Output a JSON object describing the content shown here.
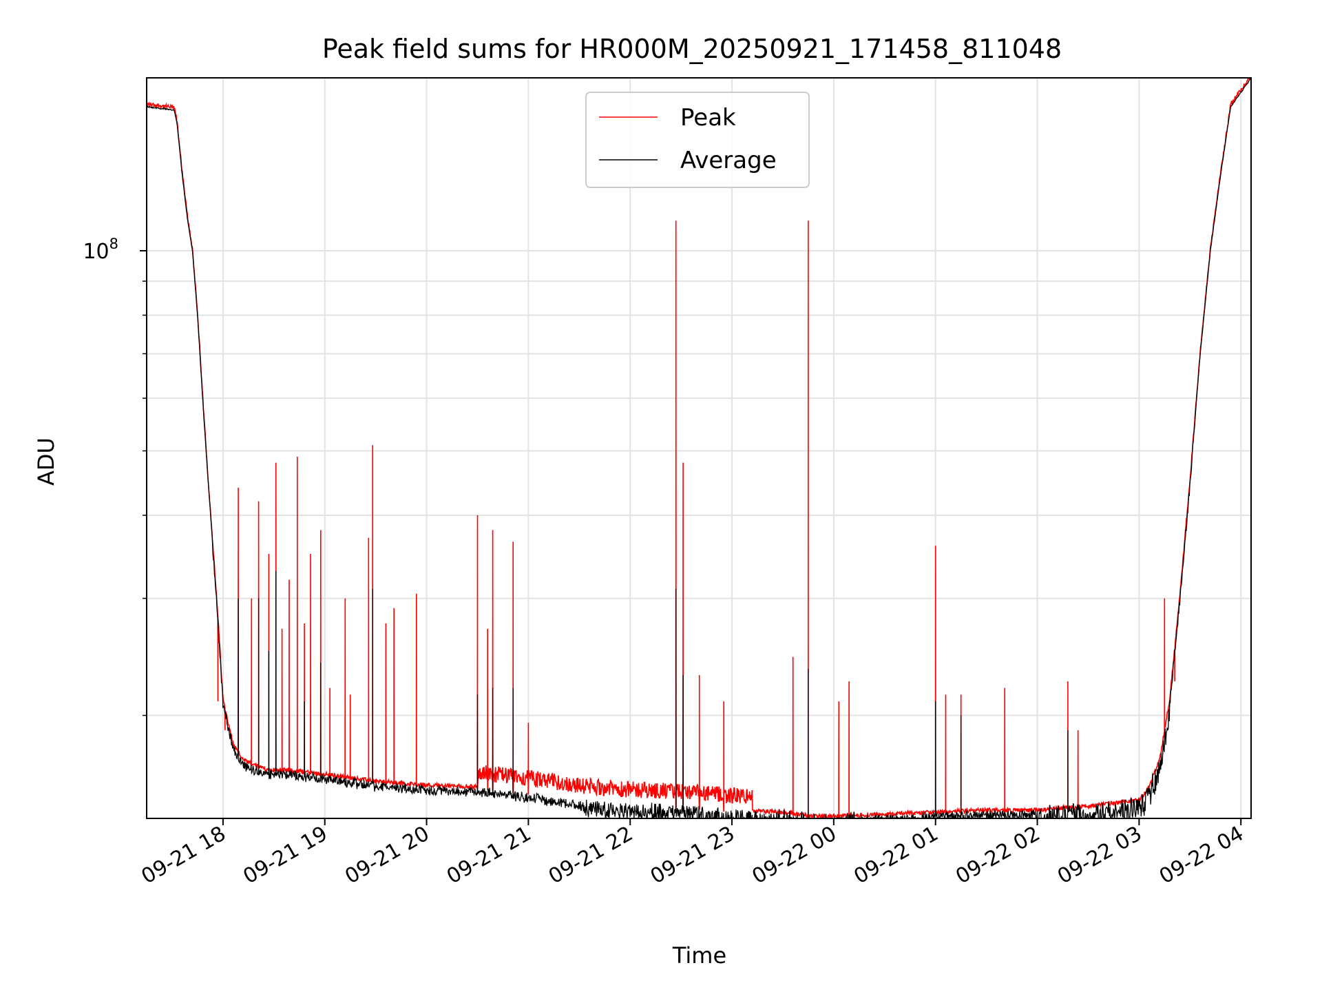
{
  "chart_data": {
    "type": "line",
    "title": "Peak field sums for HR000M_20250921_171458_811048",
    "xlabel": "Time",
    "ylabel": "ADU",
    "yscale": "log",
    "ylim": [
      14000000,
      182000000
    ],
    "xlim_hours": [
      17.25,
      28.1
    ],
    "x_tick_labels": [
      "09-21 18",
      "09-21 19",
      "09-21 20",
      "09-21 21",
      "09-21 22",
      "09-21 23",
      "09-22 00",
      "09-22 01",
      "09-22 02",
      "09-22 03",
      "09-22 04"
    ],
    "x_tick_hours": [
      18,
      19,
      20,
      21,
      22,
      23,
      24,
      25,
      26,
      27,
      28
    ],
    "y_major_tick_label": "10",
    "y_major_tick_exp": "8",
    "y_major_tick_value": 100000000,
    "y_minor_ticks": [
      20000000,
      30000000,
      40000000,
      50000000,
      60000000,
      70000000,
      80000000,
      90000000
    ],
    "grid": true,
    "legend_position": "upper-center",
    "series": [
      {
        "name": "Peak",
        "color": "#ff0000"
      },
      {
        "name": "Average",
        "color": "#000000"
      }
    ],
    "baseline": {
      "hours": [
        17.25,
        17.52,
        17.55,
        17.6,
        17.65,
        17.7,
        17.75,
        17.8,
        17.85,
        17.9,
        17.95,
        18.0,
        18.1,
        18.2,
        18.4,
        18.7,
        19.0,
        19.5,
        20.0,
        20.5,
        21.0,
        21.5,
        22.0,
        22.5,
        23.0,
        23.5,
        23.8,
        24.0,
        24.5,
        25.0,
        25.5,
        26.0,
        26.5,
        27.0,
        27.1,
        27.2,
        27.3,
        27.4,
        27.5,
        27.6,
        27.7,
        27.8,
        27.9,
        28.1
      ],
      "values": [
        165000000,
        163000000,
        155000000,
        130000000,
        112000000,
        100000000,
        80000000,
        60000000,
        46000000,
        36000000,
        28000000,
        21000000,
        18000000,
        17000000,
        16500000,
        16400000,
        16200000,
        15800000,
        15600000,
        15500000,
        15200000,
        14800000,
        14600000,
        14500000,
        14300000,
        14200000,
        14000000,
        14000000,
        14100000,
        14200000,
        14300000,
        14300000,
        14500000,
        14800000,
        15500000,
        17000000,
        21000000,
        30000000,
        45000000,
        70000000,
        100000000,
        130000000,
        165000000,
        182000000
      ]
    },
    "peak_spikes": {
      "hours": [
        17.95,
        18.02,
        18.15,
        18.28,
        18.35,
        18.45,
        18.52,
        18.58,
        18.65,
        18.73,
        18.8,
        18.86,
        18.96,
        19.05,
        19.2,
        19.25,
        19.43,
        19.47,
        19.6,
        19.68,
        19.9,
        20.5,
        20.6,
        20.65,
        20.85,
        21.0,
        22.45,
        22.52,
        22.68,
        22.92,
        23.6,
        23.75,
        24.05,
        24.15,
        25.0,
        25.1,
        25.25,
        25.68,
        26.3,
        26.4,
        27.25,
        27.35
      ],
      "values": [
        21000000,
        19000000,
        44000000,
        30000000,
        42000000,
        35000000,
        48000000,
        27000000,
        32000000,
        49000000,
        27500000,
        35000000,
        38000000,
        22000000,
        30000000,
        21500000,
        37000000,
        51000000,
        27500000,
        29000000,
        30500000,
        40000000,
        27000000,
        38000000,
        36500000,
        19500000,
        111000000,
        48000000,
        23000000,
        21000000,
        24500000,
        111000000,
        21000000,
        22500000,
        36000000,
        21500000,
        21500000,
        22000000,
        22500000,
        19000000,
        30000000,
        22500000
      ]
    },
    "average_spikes": {
      "hours": [
        18.15,
        18.35,
        18.45,
        18.52,
        18.8,
        18.96,
        19.47,
        20.5,
        20.65,
        20.85,
        22.45,
        22.52,
        23.75,
        25.0,
        25.25,
        26.3,
        27.35
      ],
      "values": [
        30000000,
        30000000,
        25000000,
        33000000,
        21000000,
        24000000,
        31000000,
        21500000,
        22000000,
        22000000,
        31000000,
        23000000,
        23500000,
        21000000,
        20000000,
        19000000,
        24500000
      ]
    }
  }
}
